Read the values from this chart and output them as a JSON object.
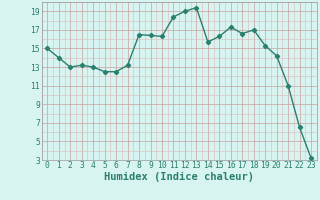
{
  "x": [
    0,
    1,
    2,
    3,
    4,
    5,
    6,
    7,
    8,
    9,
    10,
    11,
    12,
    13,
    14,
    15,
    16,
    17,
    18,
    19,
    20,
    21,
    22,
    23
  ],
  "y": [
    15,
    14,
    13,
    13.2,
    13,
    12.5,
    12.5,
    13.2,
    16.5,
    16.4,
    16.3,
    18.4,
    19,
    19.4,
    15.7,
    16.3,
    17.3,
    16.6,
    17,
    15.3,
    14.2,
    11,
    6.5,
    3.2
  ],
  "xlabel": "Humidex (Indice chaleur)",
  "line_color": "#2a7f6f",
  "marker": "D",
  "marker_size": 2.2,
  "bg_color": "#d8f4f0",
  "grid_major_color": "#c8a0a0",
  "grid_minor_color": "#dbbaba",
  "ylim": [
    3,
    20
  ],
  "xlim": [
    -0.5,
    23.5
  ],
  "yticks": [
    3,
    5,
    7,
    9,
    11,
    13,
    15,
    17,
    19
  ],
  "xticks": [
    0,
    1,
    2,
    3,
    4,
    5,
    6,
    7,
    8,
    9,
    10,
    11,
    12,
    13,
    14,
    15,
    16,
    17,
    18,
    19,
    20,
    21,
    22,
    23
  ],
  "xlabel_fontsize": 7.5,
  "tick_fontsize": 5.8,
  "line_width": 1.0
}
